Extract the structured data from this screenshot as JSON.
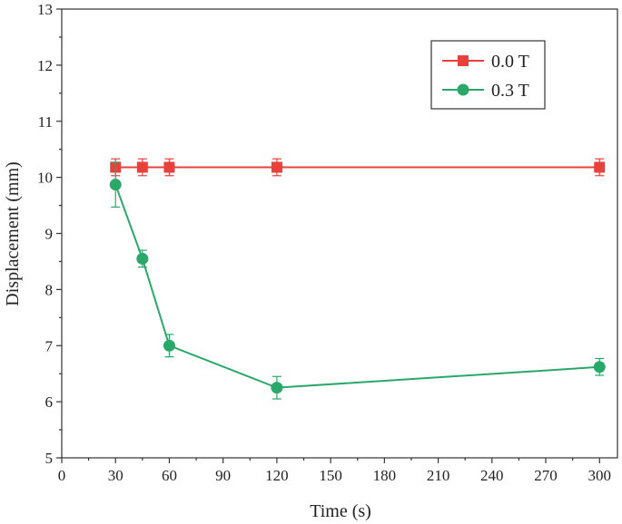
{
  "chart_data": {
    "type": "line",
    "title": "",
    "xlabel": "Time (s)",
    "ylabel": "Displacement (mm)",
    "xlim": [
      0,
      310
    ],
    "ylim": [
      5,
      13
    ],
    "xticks": [
      0,
      30,
      60,
      90,
      120,
      150,
      180,
      210,
      240,
      270,
      300
    ],
    "yticks": [
      5,
      6,
      7,
      8,
      9,
      10,
      11,
      12,
      13
    ],
    "grid": false,
    "legend_position": "top-right",
    "series": [
      {
        "name": "0.0 T",
        "color": "#e8413b",
        "marker": "square",
        "x": [
          30,
          45,
          60,
          120,
          300
        ],
        "y": [
          10.18,
          10.18,
          10.18,
          10.18,
          10.18
        ],
        "err": [
          0.15,
          0.15,
          0.15,
          0.15,
          0.15
        ]
      },
      {
        "name": "0.3 T",
        "color": "#2aa86a",
        "marker": "circle",
        "x": [
          30,
          45,
          60,
          120,
          300
        ],
        "y": [
          9.87,
          8.55,
          7.0,
          6.25,
          6.62
        ],
        "err": [
          0.4,
          0.15,
          0.2,
          0.2,
          0.15
        ]
      }
    ]
  }
}
